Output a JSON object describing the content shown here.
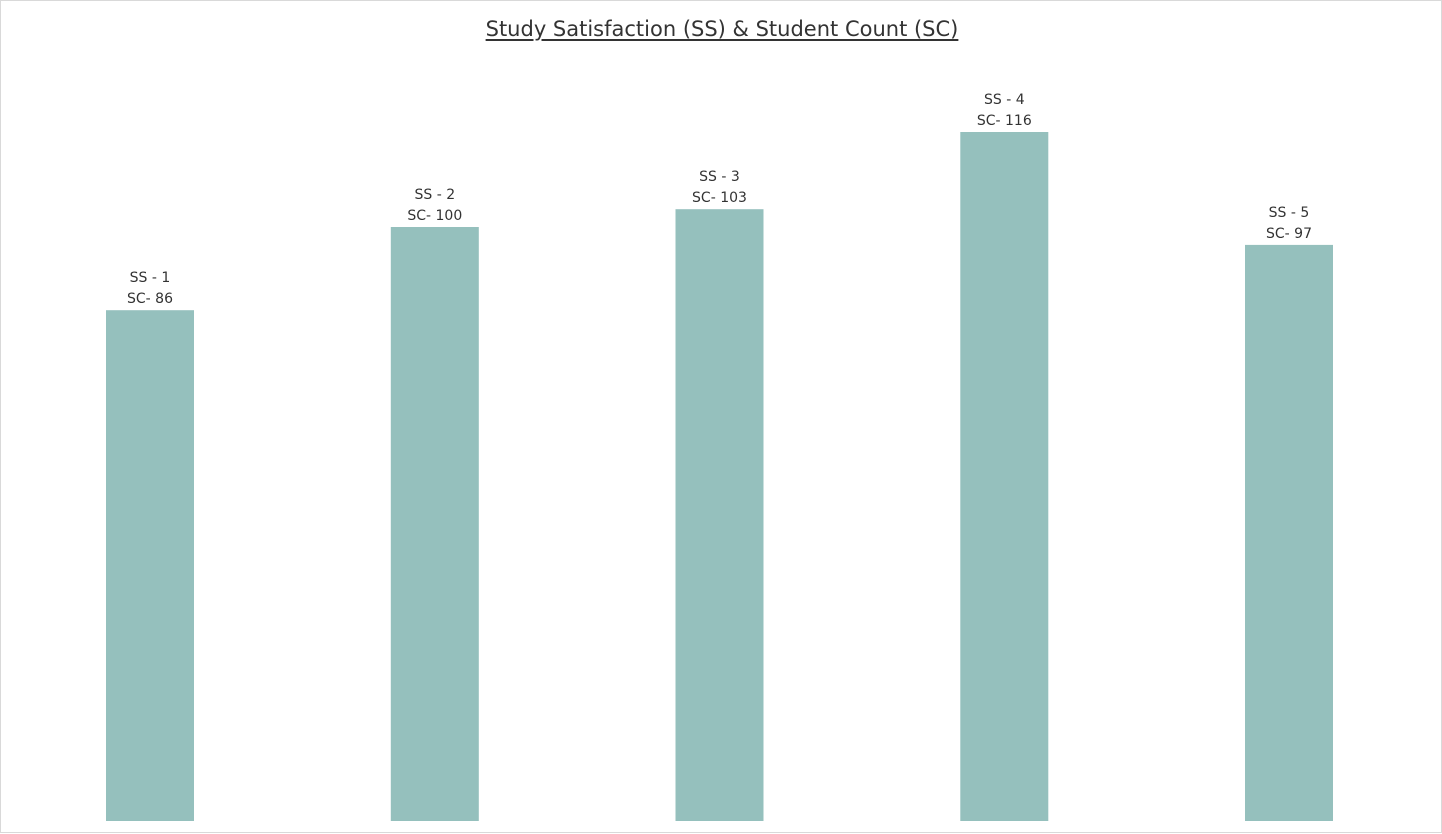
{
  "chart_data": {
    "type": "bar",
    "title": "Study Satisfaction (SS) & Student Count (SC)",
    "xlabel": "",
    "ylabel": "",
    "categories": [
      "1",
      "2",
      "3",
      "4",
      "5"
    ],
    "values": [
      86,
      100,
      103,
      116,
      97
    ],
    "label_lines": [
      [
        "SS - 1",
        "SC- 86"
      ],
      [
        "SS - 2",
        "SC- 100"
      ],
      [
        "SS - 3",
        "SC- 103"
      ],
      [
        "SS - 4",
        "SC- 116"
      ],
      [
        "SS - 5",
        "SC- 97"
      ]
    ],
    "ylim": [
      0,
      116
    ],
    "grid": false,
    "bar_color": "#95c0bd"
  }
}
